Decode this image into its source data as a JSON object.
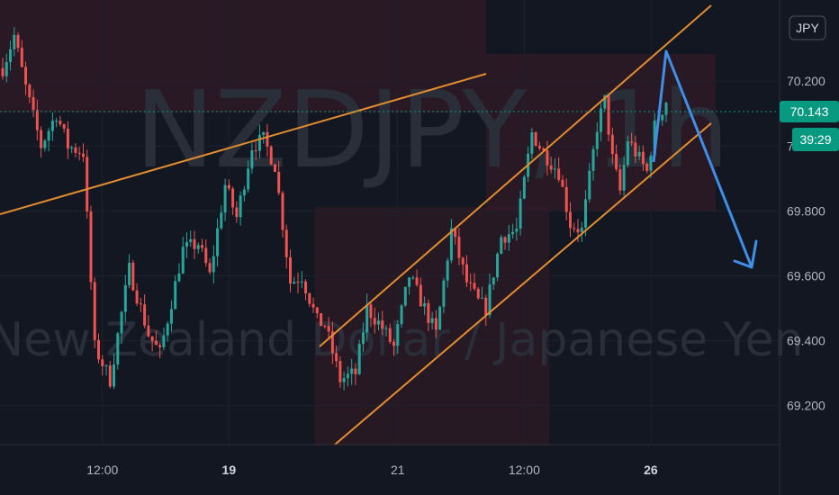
{
  "chart_data": {
    "type": "candlestick",
    "symbol_watermark": "NZDJPY, 1h",
    "description_watermark": "New Zealand Dollar / Japanese Yen",
    "currency_badge": "JPY",
    "y_ticks": [
      "70.200",
      "70.000",
      "69.800",
      "69.600",
      "69.400",
      "69.200"
    ],
    "ylim": [
      69.08,
      70.45
    ],
    "x_ticks": [
      {
        "label": "12:00",
        "bold": false,
        "bar": 26
      },
      {
        "label": "19",
        "bold": true,
        "bar": 59
      },
      {
        "label": "21",
        "bold": false,
        "bar": 103
      },
      {
        "label": "12:00",
        "bold": false,
        "bar": 136
      },
      {
        "label": "26",
        "bold": true,
        "bar": 169
      }
    ],
    "last_price": "70.143",
    "countdown": "39:29",
    "anchors": [
      [
        0,
        70.24
      ],
      [
        3,
        70.34
      ],
      [
        6,
        70.18
      ],
      [
        10,
        70.0
      ],
      [
        14,
        70.1
      ],
      [
        17,
        70.0
      ],
      [
        21,
        69.98
      ],
      [
        24,
        69.38
      ],
      [
        28,
        69.28
      ],
      [
        33,
        69.62
      ],
      [
        38,
        69.42
      ],
      [
        41,
        69.36
      ],
      [
        47,
        69.68
      ],
      [
        51,
        69.7
      ],
      [
        54,
        69.6
      ],
      [
        58,
        69.88
      ],
      [
        61,
        69.78
      ],
      [
        65,
        70.0
      ],
      [
        68,
        70.02
      ],
      [
        71,
        69.94
      ],
      [
        75,
        69.58
      ],
      [
        78,
        69.6
      ],
      [
        82,
        69.46
      ],
      [
        84,
        69.45
      ],
      [
        88,
        69.28
      ],
      [
        92,
        69.3
      ],
      [
        95,
        69.5
      ],
      [
        99,
        69.44
      ],
      [
        102,
        69.38
      ],
      [
        106,
        69.6
      ],
      [
        110,
        69.5
      ],
      [
        113,
        69.42
      ],
      [
        117,
        69.74
      ],
      [
        121,
        69.58
      ],
      [
        124,
        69.52
      ],
      [
        126,
        69.5
      ],
      [
        130,
        69.72
      ],
      [
        134,
        69.74
      ],
      [
        138,
        70.04
      ],
      [
        141,
        69.98
      ],
      [
        145,
        69.92
      ],
      [
        148,
        69.76
      ],
      [
        151,
        69.74
      ],
      [
        155,
        70.06
      ],
      [
        157,
        70.14
      ],
      [
        159,
        69.96
      ],
      [
        161,
        69.86
      ],
      [
        163,
        70.02
      ],
      [
        166,
        69.96
      ],
      [
        168,
        69.92
      ],
      [
        170,
        70.06
      ],
      [
        173,
        70.14
      ]
    ],
    "colors": {
      "up": "#26a69a",
      "down": "#ef5350",
      "trendline": "#e38d2f",
      "arrow": "#3f8fe8",
      "background": "#131722",
      "zone": "#3a1c26",
      "last_price": "#089981"
    }
  }
}
